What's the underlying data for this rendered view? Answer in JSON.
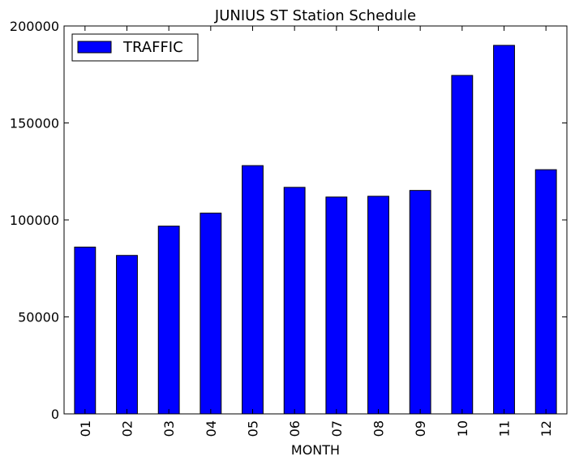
{
  "chart_data": {
    "type": "bar",
    "title": "JUNIUS ST Station Schedule",
    "xlabel": "MONTH",
    "ylabel": "",
    "ylim": [
      0,
      200000
    ],
    "yticks": [
      0,
      50000,
      100000,
      150000,
      200000
    ],
    "ytick_labels": [
      "0",
      "50000",
      "100000",
      "150000",
      "200000"
    ],
    "categories": [
      "01",
      "02",
      "03",
      "04",
      "05",
      "06",
      "07",
      "08",
      "09",
      "10",
      "11",
      "12"
    ],
    "series": [
      {
        "name": "TRAFFIC",
        "color": "#0000ff",
        "values": [
          86000,
          81700,
          96800,
          103500,
          128000,
          116800,
          111800,
          112200,
          115200,
          174500,
          190000,
          125900
        ]
      }
    ],
    "legend": {
      "position": "top-left",
      "label": "TRAFFIC"
    },
    "grid": false
  }
}
